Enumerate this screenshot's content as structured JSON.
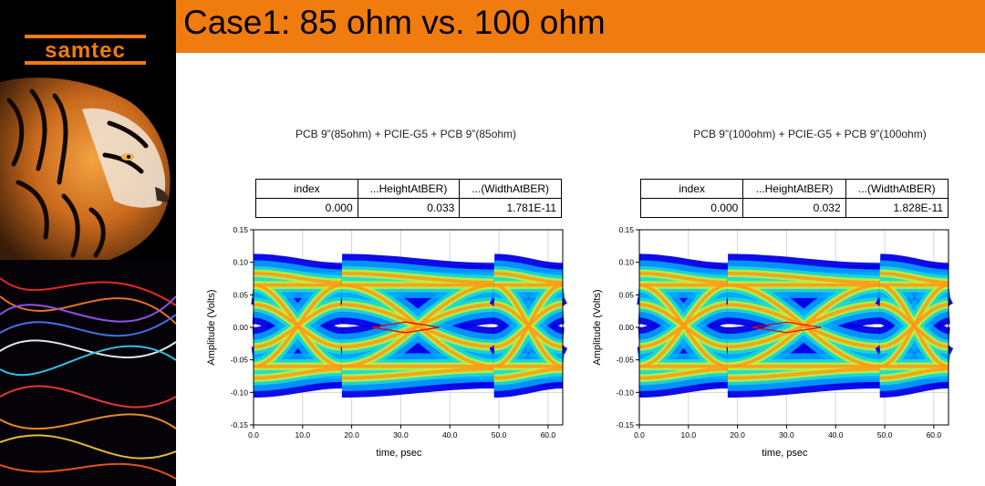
{
  "brand": {
    "logo_text": "samtec",
    "colors": {
      "accent": "#f07b0f",
      "logo": "#f07b0f"
    }
  },
  "slide": {
    "title": "Case1: 85 ohm vs. 100 ohm"
  },
  "chart_data": [
    {
      "type": "eye_diagram",
      "title": "PCB 9”(85ohm) + PCIE-G5 + PCB 9”(85ohm)",
      "xlabel": "time, psec",
      "ylabel": "Amplitude (Volts)",
      "xlim": [
        0,
        63
      ],
      "ylim": [
        -0.15,
        0.15
      ],
      "x_ticks": [
        "0.0",
        "10.0",
        "20.0",
        "30.0",
        "40.0",
        "50.0",
        "60.0"
      ],
      "y_ticks": [
        "0.15",
        "0.10",
        "0.05",
        "0.00",
        "-0.05",
        "-0.10",
        "-0.15"
      ],
      "grid": true,
      "crossings_ps": [
        18,
        49
      ],
      "eye_center_ps": 31,
      "mask": {
        "height_v": 0.033,
        "width_ps": 17.81
      },
      "table": {
        "headers": [
          "index",
          "...HeightAtBER)",
          "...(WidthAtBER)"
        ],
        "values": [
          "0.000",
          "0.033",
          "1.781E-11"
        ]
      }
    },
    {
      "type": "eye_diagram",
      "title": "PCB 9”(100ohm) + PCIE-G5 + PCB 9”(100ohm)",
      "xlabel": "time, psec",
      "ylabel": "Amplitude (Volts)",
      "xlim": [
        0,
        63
      ],
      "ylim": [
        -0.15,
        0.15
      ],
      "x_ticks": [
        "0.0",
        "10.0",
        "20.0",
        "30.0",
        "40.0",
        "50.0",
        "60.0"
      ],
      "y_ticks": [
        "0.15",
        "0.10",
        "0.05",
        "0.00",
        "-0.05",
        "-0.10",
        "-0.15"
      ],
      "grid": true,
      "crossings_ps": [
        18,
        49
      ],
      "eye_center_ps": 30,
      "mask": {
        "height_v": 0.032,
        "width_ps": 18.28
      },
      "table": {
        "headers": [
          "index",
          "...HeightAtBER)",
          "...(WidthAtBER)"
        ],
        "values": [
          "0.000",
          "0.032",
          "1.828E-11"
        ]
      }
    }
  ]
}
